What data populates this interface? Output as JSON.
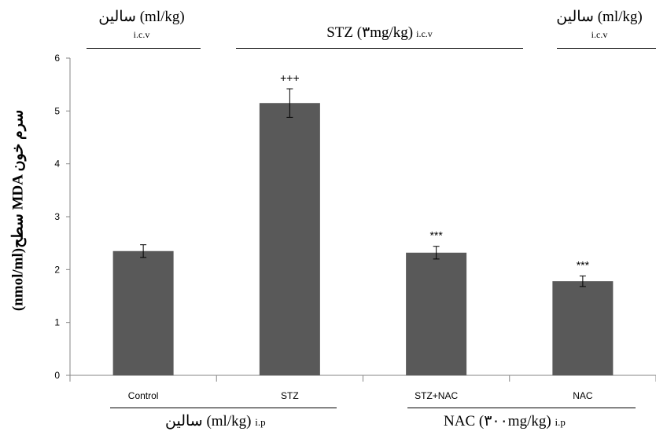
{
  "headers": {
    "left": {
      "line1": "سالین (ml/kg)",
      "line2": "i.c.v"
    },
    "middle": {
      "main": "STZ (۳mg/kg)",
      "suffix": "i.c.v"
    },
    "right": {
      "line1": "سالین (ml/kg)",
      "line2": "i.c.v"
    }
  },
  "footers": {
    "left": {
      "main": "سالین (ml/kg)",
      "suffix": "i.p"
    },
    "right": {
      "main": "NAC (۳۰۰mg/kg)",
      "suffix": "i.p"
    }
  },
  "chart_data": {
    "type": "bar",
    "categories": [
      "Control",
      "STZ",
      "STZ+NAC",
      "NAC"
    ],
    "values": [
      2.35,
      5.15,
      2.32,
      1.78
    ],
    "errors": [
      0.12,
      0.27,
      0.12,
      0.1
    ],
    "annotations": [
      "",
      "+++",
      "***",
      "***"
    ],
    "ylabel": "(nmol/ml)سطح MDA سرم خون",
    "xlabel": "",
    "ylim": [
      0,
      6
    ],
    "yticks": [
      0,
      1,
      2,
      3,
      4,
      5,
      6
    ],
    "bar_color": "#595959",
    "grid": false,
    "legend": "none"
  }
}
